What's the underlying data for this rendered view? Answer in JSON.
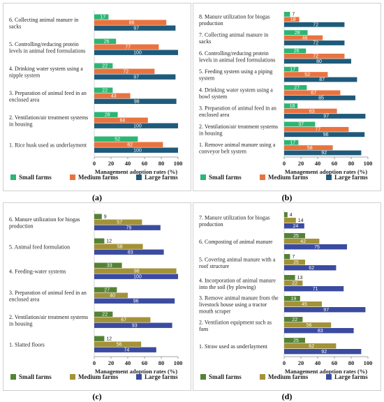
{
  "chart_data": [
    {
      "type": "bar",
      "panel_label": "(a)",
      "xlabel": "Management adoption rates (%)",
      "xlim": [
        0,
        100
      ],
      "xticks": [
        "0",
        "20",
        "40",
        "60",
        "80",
        "100"
      ],
      "legend_position": "bottom",
      "categories": [
        "1. Rice husk used as underlayment",
        "2. Ventilation/air treatment systems in housing",
        "3. Preparation of animal feed in an enclosed area",
        "4. Drinking water system using a nipple system",
        "5. Controlling/reducing protein levels in animal feed formulations",
        "6. Collecting animal manure in sacks"
      ],
      "series": [
        {
          "name": "Small farms",
          "color": "#2bb673",
          "values": [
            52,
            28,
            22,
            22,
            26,
            17
          ]
        },
        {
          "name": "Medium farms",
          "color": "#e9733e",
          "values": [
            82,
            64,
            43,
            72,
            77,
            86
          ]
        },
        {
          "name": "Large farms",
          "color": "#1f5a7a",
          "values": [
            100,
            100,
            98,
            97,
            100,
            97
          ]
        }
      ]
    },
    {
      "type": "bar",
      "panel_label": "(b)",
      "xlabel": "Management adoption rates (%)",
      "xlim": [
        0,
        100
      ],
      "xticks": [
        "0",
        "20",
        "40",
        "60",
        "80",
        "100"
      ],
      "legend_position": "bottom",
      "categories": [
        "1. Remove animal manure using a conveyor belt system",
        "2. Ventilation/air treatment systems in housing",
        "3. Preparation of animal feed in an enclosed area",
        "4. Drinking water system using a bowl system",
        "5. Feeding system using a piping system",
        "6. Controlling/reducing protein levels in animal feed formulations",
        "7. Collecting animal manure in sacks",
        "8. Manure utilization for biogas production"
      ],
      "series": [
        {
          "name": "Small farms",
          "color": "#2bb673",
          "values": [
            17,
            37,
            16,
            27,
            17,
            26,
            28,
            7
          ]
        },
        {
          "name": "Medium farms",
          "color": "#e9733e",
          "values": [
            58,
            77,
            63,
            67,
            52,
            72,
            46,
            18
          ]
        },
        {
          "name": "Large farms",
          "color": "#1f5a7a",
          "values": [
            92,
            96,
            97,
            85,
            87,
            80,
            72,
            72
          ]
        }
      ]
    },
    {
      "type": "bar",
      "panel_label": "(c)",
      "xlabel": "Management adoption rates (%)",
      "xlim": [
        0,
        100
      ],
      "xticks": [
        "0",
        "20",
        "40",
        "60",
        "80",
        "100"
      ],
      "legend_position": "bottom",
      "categories": [
        "1. Slatted floors",
        "2. Ventilation/air treatment systems in housing",
        "3. Preparation of animal feed in an enclosed area",
        "4. Feeding-water systems",
        "5. Animal feed formulation",
        "6. Manure utilization for biogas production"
      ],
      "series": [
        {
          "name": "Small farms",
          "color": "#548235",
          "values": [
            12,
            22,
            27,
            33,
            12,
            9
          ]
        },
        {
          "name": "Medium farms",
          "color": "#a39237",
          "values": [
            56,
            67,
            40,
            98,
            58,
            57
          ]
        },
        {
          "name": "Large farms",
          "color": "#3b4ba0",
          "values": [
            74,
            93,
            96,
            100,
            83,
            79
          ]
        }
      ]
    },
    {
      "type": "bar",
      "panel_label": "(d)",
      "xlabel": "Management adoption rates (%)",
      "xlim": [
        0,
        100
      ],
      "xticks": [
        "0",
        "20",
        "40",
        "60",
        "80",
        "100"
      ],
      "legend_position": "bottom",
      "categories": [
        "1. Straw used as underlayment",
        "2. Ventilation equipment such as fans",
        "3. Remove animal manure from the livestock house using a tractor mouth scraper",
        "4. Incorporation of animal manure into the soil (by plowing)",
        "5. Covering animal manure with a roof structure",
        "6. Composting of animal manure",
        "7. Manure utilization for biogas production"
      ],
      "series": [
        {
          "name": "Small farms",
          "color": "#548235",
          "values": [
            25,
            22,
            19,
            13,
            7,
            25,
            4
          ]
        },
        {
          "name": "Medium farms",
          "color": "#a39237",
          "values": [
            62,
            56,
            45,
            22,
            25,
            42,
            14
          ]
        },
        {
          "name": "Large farms",
          "color": "#3b4ba0",
          "values": [
            92,
            83,
            97,
            71,
            62,
            75,
            24
          ]
        }
      ]
    }
  ],
  "panel_display": [
    {
      "category_lines": [
        [
          "6. Collecting animal manure in",
          "sacks"
        ],
        [
          "5. Controlling/reducing protein",
          "levels in animal feed formulations"
        ],
        [
          "4. Drinking water system using a",
          "nipple system"
        ],
        [
          "3. Preparation of animal feed in an",
          "enclosed area"
        ],
        [
          "2. Ventilation/air treatment systems",
          "in housing"
        ],
        [
          "1. Rice husk used as underlayment"
        ]
      ]
    },
    {
      "category_lines": [
        [
          "8. Manure utilization for biogas",
          "production"
        ],
        [
          "7. Collecting animal manure in",
          "sacks"
        ],
        [
          "6. Controlling/reducing protein",
          "levels in animal feed formulations"
        ],
        [
          "5. Feeding system using a piping",
          "system"
        ],
        [
          "4. Drinking water system using a",
          "bowl system"
        ],
        [
          "3. Preparation of animal feed in an",
          "enclosed area"
        ],
        [
          "2. Ventilation/air treatment systems",
          "in housing"
        ],
        [
          "1. Remove animal manure using a",
          "conveyor belt system"
        ]
      ]
    },
    {
      "category_lines": [
        [
          "6. Manure utilization for biogas",
          "production"
        ],
        [
          "5. Animal feed formulation"
        ],
        [
          "4. Feeding-water systems"
        ],
        [
          "3. Preparation of animal feed in an",
          "enclosed area"
        ],
        [
          "2. Ventilation/air treatment systems",
          "in housing"
        ],
        [
          "1. Slatted floors"
        ]
      ]
    },
    {
      "category_lines": [
        [
          "7. Manure utilization for biogas",
          "production"
        ],
        [
          "6. Composting of animal manure"
        ],
        [
          "5. Covering animal manure with a",
          "roof structure"
        ],
        [
          "4. Incorporation of animal manure",
          "into the soil (by plowing)"
        ],
        [
          "3. Remove animal manure from the",
          "livestock house using a tractor",
          "mouth scraper"
        ],
        [
          "2. Ventilation equipment such as",
          "fans"
        ],
        [
          "1. Straw used as underlayment"
        ]
      ]
    }
  ]
}
